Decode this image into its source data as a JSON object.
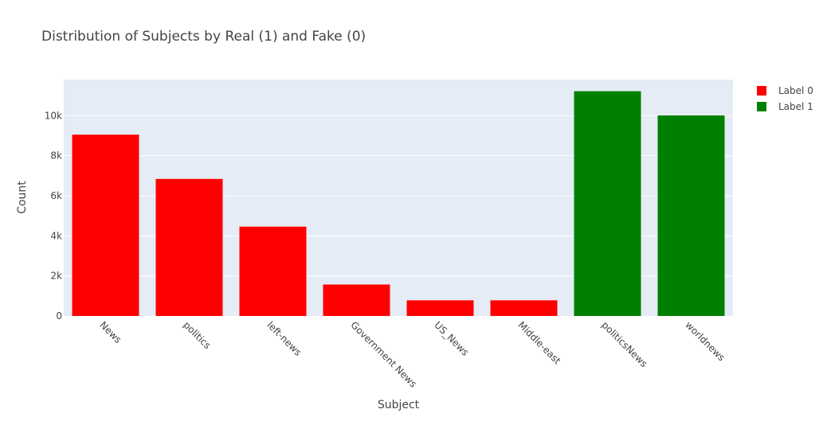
{
  "chart_data": {
    "type": "bar",
    "title": "Distribution of Subjects by Real (1) and Fake (0)",
    "xlabel": "Subject",
    "ylabel": "Count",
    "categories": [
      "News",
      "politics",
      "left-news",
      "Government News",
      "US_News",
      "Middle-east",
      "politicsNews",
      "worldnews"
    ],
    "ylim": [
      0,
      11800
    ],
    "yticks": [
      0,
      2000,
      4000,
      6000,
      8000,
      10000
    ],
    "ytick_labels": [
      "0",
      "2k",
      "4k",
      "6k",
      "8k",
      "10k"
    ],
    "grid": true,
    "legend_position": "top-right",
    "series": [
      {
        "name": "Label 0",
        "color": "#ff0000",
        "values": [
          9050,
          6840,
          4460,
          1570,
          780,
          780,
          null,
          null
        ]
      },
      {
        "name": "Label 1",
        "color": "#008000",
        "values": [
          null,
          null,
          null,
          null,
          null,
          null,
          11220,
          10010
        ]
      }
    ]
  }
}
